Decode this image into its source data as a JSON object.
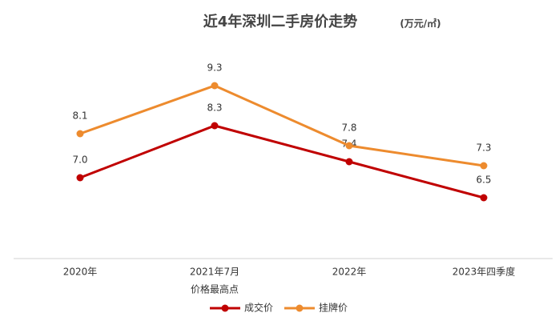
{
  "chart_data": {
    "type": "line",
    "title": "近4年深圳二手房价走势",
    "subtitle": "(万元/㎡)",
    "categories": [
      "2020年",
      "2021年7月",
      "2022年",
      "2023年四季度"
    ],
    "annotation": "价格最高点",
    "series": [
      {
        "name": "成交价",
        "color": "#c00000",
        "values": [
          7.0,
          8.3,
          7.4,
          6.5
        ],
        "value_labels": [
          "7.0",
          "8.3",
          "7.4",
          "6.5"
        ]
      },
      {
        "name": "挂牌价",
        "color": "#ed8b2e",
        "values": [
          8.1,
          9.3,
          7.8,
          7.3
        ],
        "value_labels": [
          "8.1",
          "9.3",
          "7.8",
          "7.3"
        ]
      }
    ]
  }
}
